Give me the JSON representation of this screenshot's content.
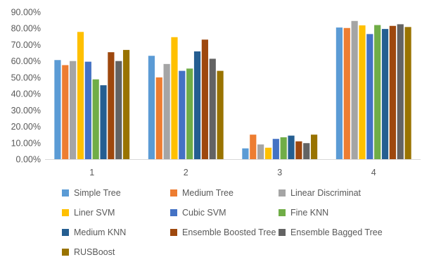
{
  "chart_data": {
    "type": "bar",
    "categories": [
      "1",
      "2",
      "3",
      "4"
    ],
    "ylim": [
      0,
      90
    ],
    "yticks": [
      "0.00%",
      "10.00%",
      "20.00%",
      "30.00%",
      "40.00%",
      "50.00%",
      "60.00%",
      "70.00%",
      "80.00%",
      "90.00%"
    ],
    "grid": false,
    "legend_position": "bottom",
    "series": [
      {
        "name": "Simple Tree",
        "color": "#5B9BD5",
        "values": [
          60.6,
          63.2,
          6.6,
          80.5
        ]
      },
      {
        "name": "Medium Tree",
        "color": "#ED7D31",
        "values": [
          57.5,
          50.0,
          15.0,
          80.2
        ]
      },
      {
        "name": "Linear Discriminat",
        "color": "#A5A5A5",
        "values": [
          60.0,
          58.2,
          9.0,
          84.5
        ]
      },
      {
        "name": "Liner SVM",
        "color": "#FFC000",
        "values": [
          77.8,
          74.6,
          7.0,
          81.8
        ]
      },
      {
        "name": "Cubic SVM",
        "color": "#4472C4",
        "values": [
          59.6,
          54.0,
          12.4,
          76.5
        ]
      },
      {
        "name": "Fine KNN",
        "color": "#70AD47",
        "values": [
          48.8,
          55.4,
          13.4,
          82.0
        ]
      },
      {
        "name": "Medium KNN",
        "color": "#255E91",
        "values": [
          45.2,
          65.9,
          14.4,
          79.6
        ]
      },
      {
        "name": "Ensemble Boosted Tree",
        "color": "#9E480E",
        "values": [
          65.4,
          73.1,
          10.9,
          81.5
        ]
      },
      {
        "name": "Ensemble Bagged Tree",
        "color": "#636363",
        "values": [
          60.0,
          61.4,
          9.8,
          82.5
        ]
      },
      {
        "name": "RUSBoost",
        "color": "#997300",
        "values": [
          66.8,
          54.0,
          15.0,
          80.8
        ]
      }
    ]
  }
}
